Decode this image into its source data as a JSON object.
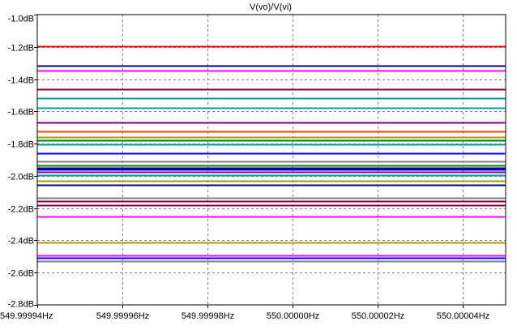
{
  "chart_data": {
    "type": "line",
    "title": "V(vo)/V(vi)",
    "xlabel": "",
    "ylabel": "",
    "xlim": [
      549.99994,
      550.00005
    ],
    "ylim": [
      -2.8,
      -1.0
    ],
    "x_ticks": [
      "549.99994Hz",
      "549.99996Hz",
      "549.99998Hz",
      "550.00000Hz",
      "550.00002Hz",
      "550.00004Hz"
    ],
    "x_tick_values": [
      549.99994,
      549.99996,
      549.99998,
      550.0,
      550.00002,
      550.00004
    ],
    "y_ticks": [
      "-1.0dB",
      "-1.2dB",
      "-1.4dB",
      "-1.6dB",
      "-1.8dB",
      "-2.0dB",
      "-2.2dB",
      "-2.4dB",
      "-2.6dB",
      "-2.8dB"
    ],
    "y_tick_values": [
      -1.0,
      -1.2,
      -1.4,
      -1.6,
      -1.8,
      -2.0,
      -2.2,
      -2.4,
      -2.6,
      -2.8
    ],
    "grid": true,
    "background": "#ffffff",
    "series": [
      {
        "color": "#ff0000",
        "values": [
          -1.197,
          -1.197
        ]
      },
      {
        "color": "#000080",
        "values": [
          -1.318,
          -1.318
        ]
      },
      {
        "color": "#ff00ff",
        "values": [
          -1.348,
          -1.348
        ]
      },
      {
        "color": "#800040",
        "values": [
          -1.465,
          -1.465
        ]
      },
      {
        "color": "#00a0a0",
        "values": [
          -1.519,
          -1.519
        ]
      },
      {
        "color": "#00a0a0",
        "values": [
          -1.58,
          -1.58
        ]
      },
      {
        "color": "#800080",
        "values": [
          -1.671,
          -1.671
        ]
      },
      {
        "color": "#ff4000",
        "values": [
          -1.722,
          -1.722
        ]
      },
      {
        "color": "#a0a000",
        "values": [
          -1.758,
          -1.758
        ]
      },
      {
        "color": "#008000",
        "values": [
          -1.778,
          -1.778
        ]
      },
      {
        "color": "#00a0a0",
        "values": [
          -1.804,
          -1.804
        ]
      },
      {
        "color": "#0000ff",
        "values": [
          -1.859,
          -1.859
        ]
      },
      {
        "color": "#808080",
        "values": [
          -1.91,
          -1.91
        ]
      },
      {
        "color": "#008000",
        "values": [
          -1.935,
          -1.935
        ]
      },
      {
        "color": "#000080",
        "values": [
          -1.95,
          -1.95
        ]
      },
      {
        "color": "#0000ff",
        "values": [
          -1.96,
          -1.96
        ]
      },
      {
        "color": "#800080",
        "values": [
          -1.975,
          -1.975
        ]
      },
      {
        "color": "#00a0a0",
        "values": [
          -1.995,
          -1.995
        ]
      },
      {
        "color": "#a0a000",
        "values": [
          -2.03,
          -2.03
        ]
      },
      {
        "color": "#000080",
        "values": [
          -2.055,
          -2.055
        ]
      },
      {
        "color": "#808080",
        "values": [
          -2.136,
          -2.136
        ]
      },
      {
        "color": "#800040",
        "values": [
          -2.157,
          -2.157
        ]
      },
      {
        "color": "#800040",
        "values": [
          -2.182,
          -2.182
        ]
      },
      {
        "color": "#ff00ff",
        "values": [
          -2.253,
          -2.253
        ]
      },
      {
        "color": "#a0a000",
        "values": [
          -2.412,
          -2.412
        ]
      },
      {
        "color": "#ff00ff",
        "values": [
          -2.493,
          -2.493
        ]
      },
      {
        "color": "#0000ff",
        "values": [
          -2.508,
          -2.508
        ]
      },
      {
        "color": "#808080",
        "values": [
          -2.529,
          -2.529
        ]
      }
    ]
  }
}
